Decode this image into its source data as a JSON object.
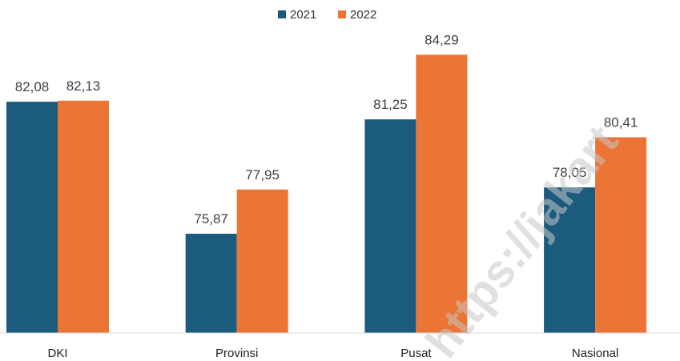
{
  "chart_data": {
    "type": "bar",
    "title": "",
    "xlabel": "",
    "ylabel": "",
    "categories": [
      "DKI",
      "Provinsi",
      "Pusat",
      "Nasional"
    ],
    "series": [
      {
        "name": "2021",
        "values": [
          82.08,
          75.87,
          81.25,
          78.05
        ],
        "labels": [
          "82,08",
          "75,87",
          "81,25",
          "78,05"
        ],
        "color": "#1b5b7e"
      },
      {
        "name": "2022",
        "values": [
          82.13,
          77.95,
          84.29,
          80.41
        ],
        "labels": [
          "82,13",
          "77,95",
          "84,29",
          "80,41"
        ],
        "color": "#ec7434"
      }
    ],
    "ylim": [
      71.2,
      86
    ],
    "grid": false,
    "legend_position": "top-center"
  },
  "watermark": {
    "text": "https://jakart"
  }
}
